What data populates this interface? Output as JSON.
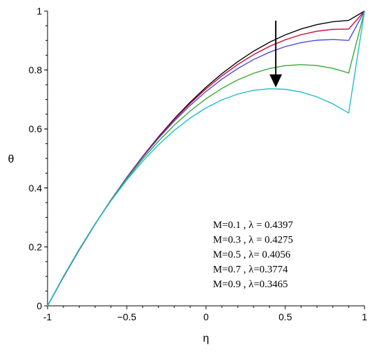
{
  "chart_data": {
    "type": "line",
    "title": "",
    "xlabel": "η",
    "ylabel": "θ",
    "xlim": [
      -1,
      1
    ],
    "ylim": [
      0,
      1
    ],
    "xticks": [
      -1,
      -0.5,
      0,
      0.5,
      1
    ],
    "xtick_labels": [
      "-1",
      "−0.5",
      "0",
      "0.5",
      "1"
    ],
    "yticks": [
      0,
      0.2,
      0.4,
      0.6,
      0.8,
      1
    ],
    "ytick_labels": [
      "0",
      "0.2",
      "0.4",
      "0.6",
      "0.8",
      "1"
    ],
    "grid": false,
    "legend_position": "bottom-right",
    "arrow_annotation": "downward arrow indicating increasing M",
    "x": [
      -1,
      -0.9,
      -0.8,
      -0.7,
      -0.6,
      -0.5,
      -0.4,
      -0.3,
      -0.2,
      -0.1,
      0,
      0.1,
      0.2,
      0.3,
      0.4,
      0.5,
      0.6,
      0.7,
      0.8,
      0.9,
      1
    ],
    "series": [
      {
        "name": "M=0.1 ,  λ = 0.4397",
        "color": "#000000",
        "values": [
          0,
          0.0975,
          0.1897,
          0.2768,
          0.3587,
          0.4355,
          0.507,
          0.5735,
          0.6347,
          0.6908,
          0.7418,
          0.7876,
          0.8282,
          0.8637,
          0.894,
          0.9191,
          0.9391,
          0.954,
          0.9637,
          0.9682,
          1
        ]
      },
      {
        "name": "M=0.3 ,  λ = 0.4275",
        "color": "#cc0033",
        "values": [
          0,
          0.0979,
          0.1903,
          0.2773,
          0.359,
          0.4353,
          0.5062,
          0.5718,
          0.6319,
          0.6867,
          0.7361,
          0.7801,
          0.8188,
          0.8521,
          0.88,
          0.9025,
          0.9197,
          0.9315,
          0.9379,
          0.9389,
          1
        ]
      },
      {
        "name": "M=0.5 ,  λ= 0.4056",
        "color": "#4a4ae0",
        "values": [
          0,
          0.0985,
          0.191,
          0.2778,
          0.3588,
          0.4343,
          0.5042,
          0.5684,
          0.6269,
          0.6798,
          0.7272,
          0.7689,
          0.8049,
          0.8354,
          0.8602,
          0.8794,
          0.893,
          0.901,
          0.9034,
          0.9002,
          1
        ]
      },
      {
        "name": "M=0.7 ,  λ=0.3774",
        "color": "#33aa33",
        "values": [
          0,
          0.0992,
          0.1918,
          0.2779,
          0.3576,
          0.431,
          0.498,
          0.5587,
          0.613,
          0.6609,
          0.7024,
          0.7376,
          0.7664,
          0.7889,
          0.805,
          0.8147,
          0.8181,
          0.8151,
          0.8057,
          0.79,
          1
        ]
      },
      {
        "name": "M=0.9 ,  λ=0.3465",
        "color": "#22bbcc",
        "values": [
          0,
          0.1,
          0.1926,
          0.2779,
          0.356,
          0.4267,
          0.4902,
          0.5464,
          0.5953,
          0.637,
          0.6714,
          0.6986,
          0.7184,
          0.731,
          0.7364,
          0.7345,
          0.7253,
          0.7088,
          0.6851,
          0.6541,
          1
        ]
      }
    ]
  }
}
